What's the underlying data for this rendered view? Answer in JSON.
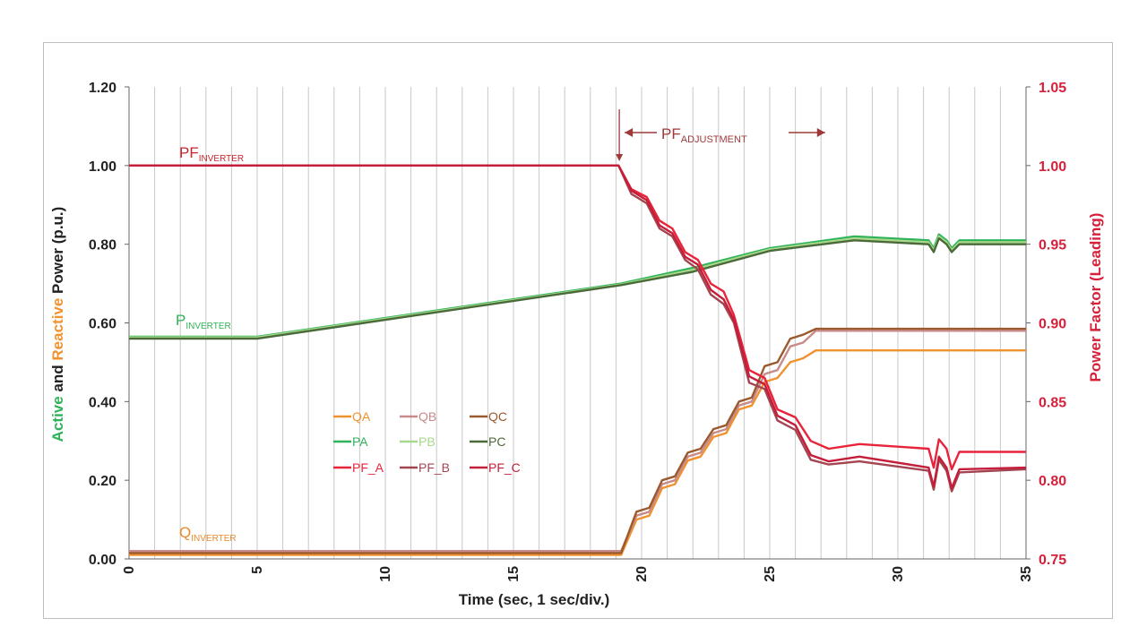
{
  "chart_data": {
    "type": "line",
    "xlabel": "Time (sec, 1 sec/div.)",
    "ylabel_left": [
      {
        "text": "Active",
        "color": "#2fb35a"
      },
      {
        "text": " and ",
        "color": "#222222"
      },
      {
        "text": "Reactive",
        "color": "#f0922e"
      },
      {
        "text": " Power (p.u.)",
        "color": "#222222"
      }
    ],
    "ylabel_right": "Power Factor (Leading)",
    "xlim": [
      0,
      35
    ],
    "ylim_left": [
      0,
      1.2
    ],
    "ylim_right": [
      0.75,
      1.05
    ],
    "x_ticks": [
      "0",
      "5",
      "10",
      "15",
      "20",
      "25",
      "30",
      "35"
    ],
    "y_ticks_left": [
      "0.00",
      "0.20",
      "0.40",
      "0.60",
      "0.80",
      "1.00",
      "1.20"
    ],
    "y_ticks_right": [
      "0.75",
      "0.80",
      "0.85",
      "0.90",
      "0.95",
      "1.00",
      "1.05"
    ],
    "grid": "vertical",
    "colors": {
      "left_axis": "#222222",
      "right_axis": "#d6213b",
      "grid": "#c8c8c8"
    },
    "annotations": {
      "pf_inverter": {
        "main": "PF",
        "sub": "INVERTER",
        "color": "#c8262f"
      },
      "p_inverter": {
        "main": "P",
        "sub": "INVERTER",
        "color": "#2fb35a"
      },
      "q_inverter": {
        "main": "Q",
        "sub": "INVERTER",
        "color": "#e8892a"
      },
      "pf_adjustment": {
        "main": "PF",
        "sub": "ADJUSTMENT",
        "color": "#9e3a3a",
        "x_start": 19.2,
        "x_end": 27.3
      }
    },
    "series": [
      {
        "name": "QA",
        "axis": "left",
        "color": "#f0922e",
        "points": [
          [
            0,
            0.01
          ],
          [
            19.2,
            0.01
          ],
          [
            19.8,
            0.1
          ],
          [
            20.3,
            0.11
          ],
          [
            20.8,
            0.18
          ],
          [
            21.3,
            0.19
          ],
          [
            21.8,
            0.25
          ],
          [
            22.3,
            0.26
          ],
          [
            22.8,
            0.31
          ],
          [
            23.3,
            0.32
          ],
          [
            23.8,
            0.38
          ],
          [
            24.3,
            0.39
          ],
          [
            24.8,
            0.45
          ],
          [
            25.3,
            0.46
          ],
          [
            25.8,
            0.5
          ],
          [
            26.3,
            0.51
          ],
          [
            26.8,
            0.53
          ],
          [
            35,
            0.53
          ]
        ]
      },
      {
        "name": "QB",
        "axis": "left",
        "color": "#c98a8a",
        "points": [
          [
            0,
            0.02
          ],
          [
            19.2,
            0.02
          ],
          [
            19.8,
            0.11
          ],
          [
            20.3,
            0.12
          ],
          [
            20.8,
            0.19
          ],
          [
            21.3,
            0.2
          ],
          [
            21.8,
            0.26
          ],
          [
            22.3,
            0.27
          ],
          [
            22.8,
            0.32
          ],
          [
            23.3,
            0.33
          ],
          [
            23.8,
            0.39
          ],
          [
            24.3,
            0.4
          ],
          [
            24.8,
            0.47
          ],
          [
            25.3,
            0.48
          ],
          [
            25.8,
            0.54
          ],
          [
            26.3,
            0.55
          ],
          [
            26.8,
            0.58
          ],
          [
            35,
            0.58
          ]
        ]
      },
      {
        "name": "QC",
        "axis": "left",
        "color": "#9a5a2e",
        "points": [
          [
            0,
            0.015
          ],
          [
            19.2,
            0.015
          ],
          [
            19.8,
            0.12
          ],
          [
            20.3,
            0.13
          ],
          [
            20.8,
            0.2
          ],
          [
            21.3,
            0.21
          ],
          [
            21.8,
            0.27
          ],
          [
            22.3,
            0.28
          ],
          [
            22.8,
            0.33
          ],
          [
            23.3,
            0.34
          ],
          [
            23.8,
            0.4
          ],
          [
            24.3,
            0.41
          ],
          [
            24.8,
            0.49
          ],
          [
            25.3,
            0.5
          ],
          [
            25.8,
            0.56
          ],
          [
            26.3,
            0.57
          ],
          [
            26.8,
            0.585
          ],
          [
            35,
            0.585
          ]
        ]
      },
      {
        "name": "PA",
        "axis": "left",
        "color": "#2fb35a",
        "points": [
          [
            0,
            0.565
          ],
          [
            5,
            0.565
          ],
          [
            19.2,
            0.7
          ],
          [
            22,
            0.74
          ],
          [
            25,
            0.79
          ],
          [
            28.3,
            0.82
          ],
          [
            31.2,
            0.81
          ],
          [
            31.4,
            0.79
          ],
          [
            31.6,
            0.825
          ],
          [
            31.9,
            0.81
          ],
          [
            32.1,
            0.79
          ],
          [
            32.4,
            0.81
          ],
          [
            35,
            0.81
          ]
        ]
      },
      {
        "name": "PB",
        "axis": "left",
        "color": "#a8d88a",
        "points": [
          [
            0,
            0.563
          ],
          [
            5,
            0.563
          ],
          [
            19.2,
            0.698
          ],
          [
            22,
            0.735
          ],
          [
            25,
            0.787
          ],
          [
            28.3,
            0.815
          ],
          [
            31.2,
            0.805
          ],
          [
            31.4,
            0.785
          ],
          [
            31.6,
            0.82
          ],
          [
            31.9,
            0.805
          ],
          [
            32.1,
            0.785
          ],
          [
            32.4,
            0.805
          ],
          [
            35,
            0.805
          ]
        ]
      },
      {
        "name": "PC",
        "axis": "left",
        "color": "#4a6a3a",
        "points": [
          [
            0,
            0.56
          ],
          [
            5,
            0.56
          ],
          [
            19.2,
            0.696
          ],
          [
            22,
            0.73
          ],
          [
            25,
            0.783
          ],
          [
            28.3,
            0.81
          ],
          [
            31.2,
            0.8
          ],
          [
            31.4,
            0.78
          ],
          [
            31.6,
            0.815
          ],
          [
            31.9,
            0.8
          ],
          [
            32.1,
            0.78
          ],
          [
            32.4,
            0.8
          ],
          [
            35,
            0.8
          ]
        ]
      },
      {
        "name": "PF_A",
        "axis": "right",
        "color": "#e8233a",
        "points": [
          [
            0,
            1.0
          ],
          [
            19.1,
            1.0
          ],
          [
            19.6,
            0.985
          ],
          [
            20.2,
            0.98
          ],
          [
            20.7,
            0.965
          ],
          [
            21.2,
            0.96
          ],
          [
            21.7,
            0.945
          ],
          [
            22.2,
            0.94
          ],
          [
            22.7,
            0.925
          ],
          [
            23.2,
            0.92
          ],
          [
            23.6,
            0.905
          ],
          [
            24.2,
            0.87
          ],
          [
            24.8,
            0.865
          ],
          [
            25.3,
            0.845
          ],
          [
            26.0,
            0.84
          ],
          [
            26.6,
            0.825
          ],
          [
            27.3,
            0.82
          ],
          [
            28.5,
            0.823
          ],
          [
            31.2,
            0.82
          ],
          [
            31.4,
            0.808
          ],
          [
            31.6,
            0.826
          ],
          [
            31.9,
            0.82
          ],
          [
            32.1,
            0.807
          ],
          [
            32.4,
            0.818
          ],
          [
            35,
            0.818
          ]
        ]
      },
      {
        "name": "PF_B",
        "axis": "right",
        "color": "#a34550",
        "points": [
          [
            0,
            1.0
          ],
          [
            19.1,
            1.0
          ],
          [
            19.6,
            0.982
          ],
          [
            20.2,
            0.976
          ],
          [
            20.7,
            0.96
          ],
          [
            21.2,
            0.955
          ],
          [
            21.7,
            0.94
          ],
          [
            22.2,
            0.934
          ],
          [
            22.7,
            0.918
          ],
          [
            23.2,
            0.912
          ],
          [
            23.6,
            0.9
          ],
          [
            24.2,
            0.862
          ],
          [
            24.8,
            0.858
          ],
          [
            25.3,
            0.838
          ],
          [
            26.0,
            0.832
          ],
          [
            26.6,
            0.813
          ],
          [
            27.3,
            0.81
          ],
          [
            28.5,
            0.812
          ],
          [
            31.2,
            0.806
          ],
          [
            31.4,
            0.794
          ],
          [
            31.6,
            0.813
          ],
          [
            31.9,
            0.806
          ],
          [
            32.1,
            0.793
          ],
          [
            32.4,
            0.805
          ],
          [
            35,
            0.807
          ]
        ]
      },
      {
        "name": "PF_C",
        "axis": "right",
        "color": "#c41e3a",
        "points": [
          [
            0,
            1.0
          ],
          [
            19.1,
            1.0
          ],
          [
            19.6,
            0.984
          ],
          [
            20.2,
            0.978
          ],
          [
            20.7,
            0.962
          ],
          [
            21.2,
            0.957
          ],
          [
            21.7,
            0.942
          ],
          [
            22.2,
            0.937
          ],
          [
            22.7,
            0.921
          ],
          [
            23.2,
            0.915
          ],
          [
            23.6,
            0.902
          ],
          [
            24.2,
            0.866
          ],
          [
            24.8,
            0.861
          ],
          [
            25.3,
            0.841
          ],
          [
            26.0,
            0.835
          ],
          [
            26.6,
            0.816
          ],
          [
            27.3,
            0.812
          ],
          [
            28.5,
            0.815
          ],
          [
            31.2,
            0.808
          ],
          [
            31.4,
            0.796
          ],
          [
            31.6,
            0.815
          ],
          [
            31.9,
            0.808
          ],
          [
            32.1,
            0.795
          ],
          [
            32.4,
            0.807
          ],
          [
            35,
            0.808
          ]
        ]
      }
    ],
    "legend": {
      "placement": "center-left, inside plot",
      "rows": [
        [
          "QA",
          "QB",
          "QC"
        ],
        [
          "PA",
          "PB",
          "PC"
        ],
        [
          "PF_A",
          "PF_B",
          "PF_C"
        ]
      ]
    }
  }
}
